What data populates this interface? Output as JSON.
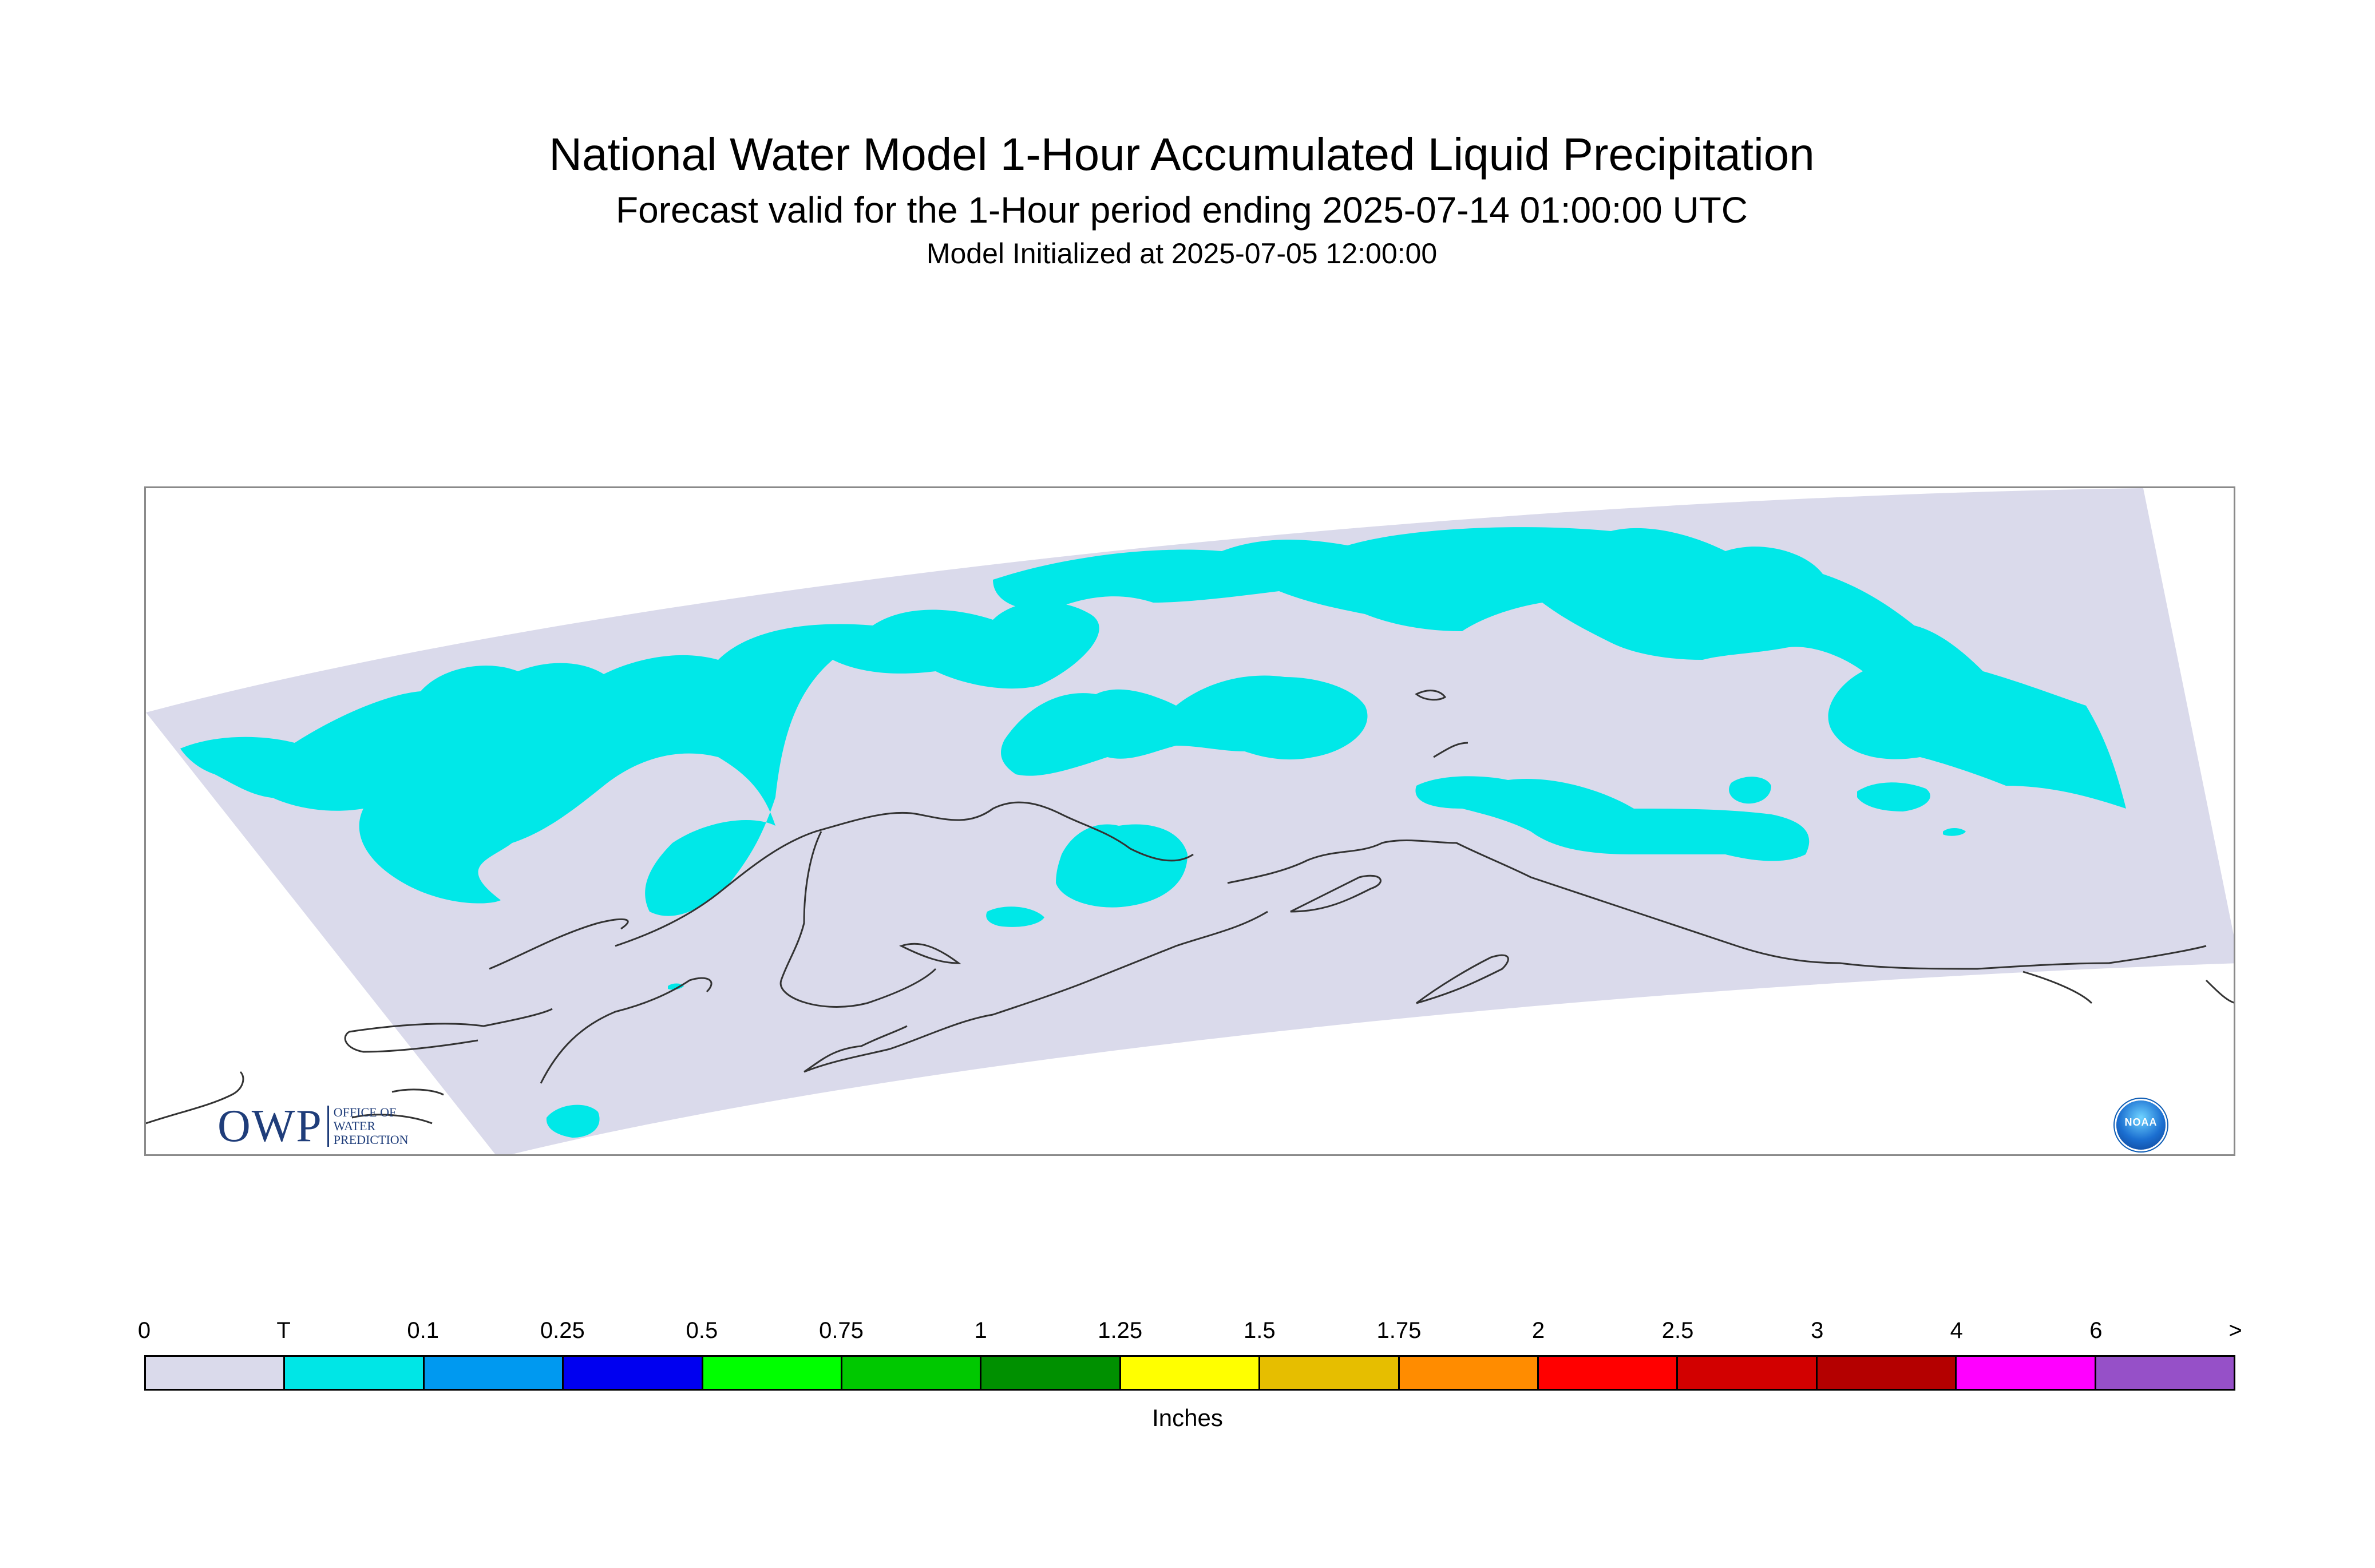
{
  "title": {
    "line1": "National Water Model 1-Hour Accumulated Liquid Precipitation",
    "line2": "Forecast valid for the 1-Hour period ending 2025-07-14 01:00:00 UTC",
    "line3": "Model Initialized at 2025-07-05 12:00:00"
  },
  "logos": {
    "owp_big": "OWP",
    "owp_small": [
      "OFFICE OF",
      "WATER",
      "PREDICTION"
    ],
    "noaa": "NOAA"
  },
  "map": {
    "domain_fill": "#dadaeb",
    "trace_fill": "#00e8e8",
    "coastline_color": "#333333"
  },
  "colorbar": {
    "units": "Inches",
    "tick_labels": [
      "0",
      "T",
      "0.1",
      "0.25",
      "0.5",
      "0.75",
      "1",
      "1.25",
      "1.5",
      "1.75",
      "2",
      "2.5",
      "3",
      "4",
      "6",
      ">"
    ],
    "colors": [
      "#dadaeb",
      "#00e6e6",
      "#0099f0",
      "#0000f0",
      "#00ff00",
      "#00c800",
      "#009000",
      "#ffff00",
      "#e6be00",
      "#ff8c00",
      "#ff0000",
      "#d20000",
      "#b40000",
      "#ff00ff",
      "#9650c8"
    ]
  }
}
